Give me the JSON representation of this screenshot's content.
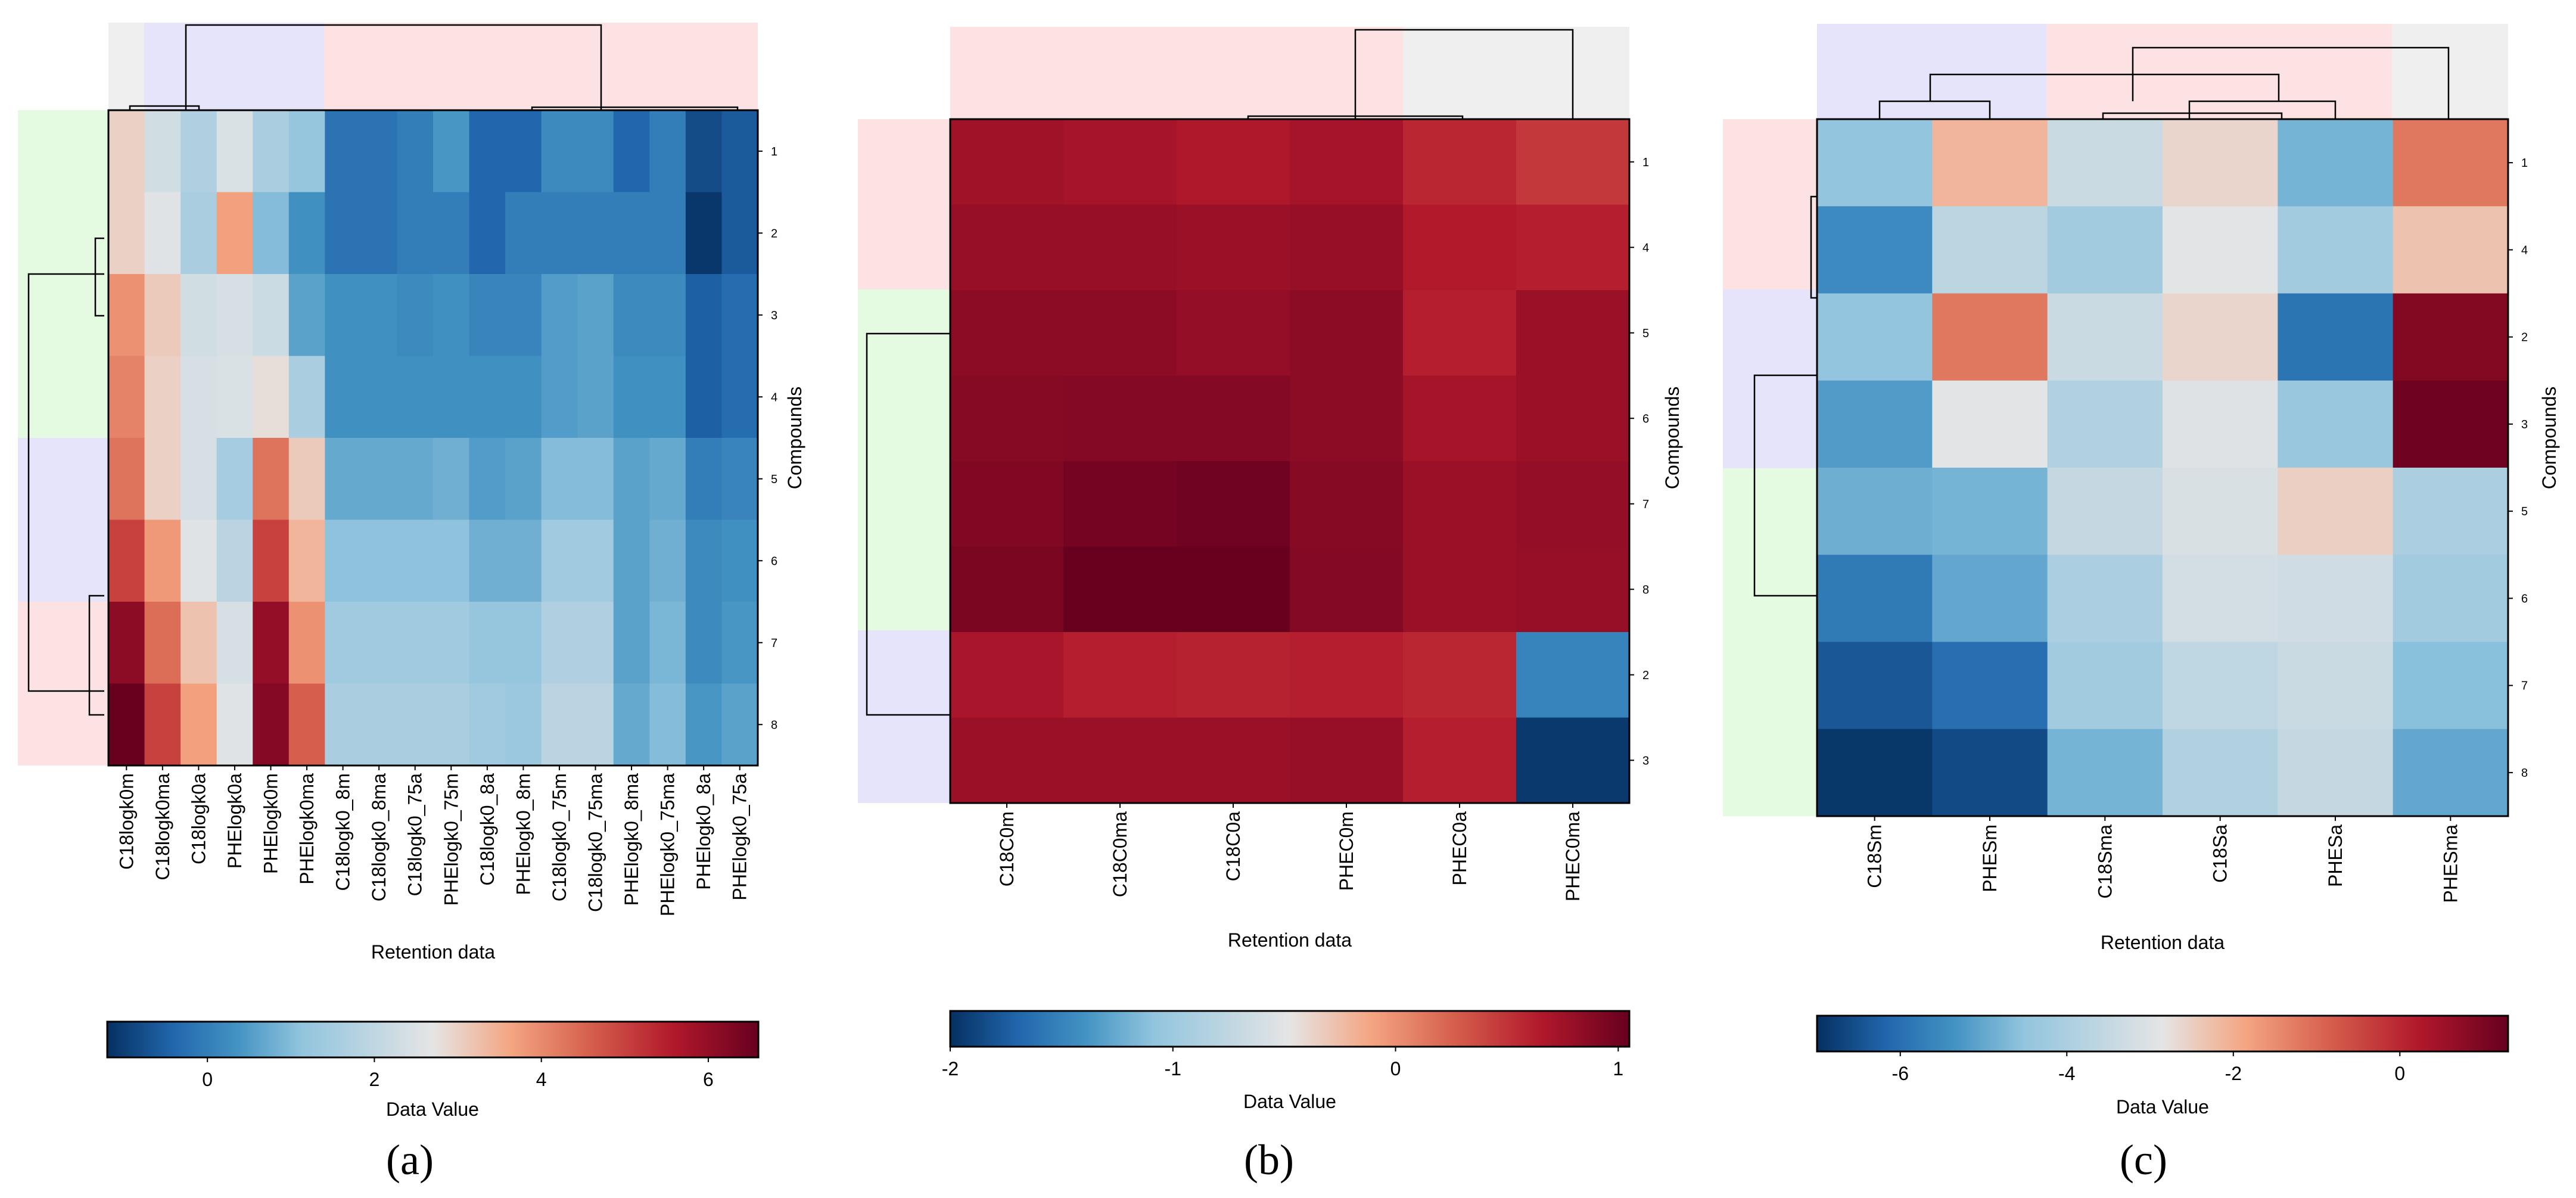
{
  "colors": {
    "dark_blue": "#053061",
    "mid_blue": "#4393c3",
    "light_gray": "#e5e5e5",
    "salmon": "#d6604d",
    "dark_red": "#67001f",
    "band_pink": "#fde2e4",
    "band_green": "#e5fbe1",
    "band_lavender": "#e6e4fa",
    "band_gray": "#efefef"
  },
  "chart_data": [
    {
      "type": "heatmap",
      "panel_label": "(a)",
      "xlabel": "Retention data",
      "ylabel": "Compounds",
      "colorbar_label": "Data Value",
      "colorbar_ticks": [
        0,
        2,
        4,
        6
      ],
      "vmin": -1.2,
      "vmax": 6.6,
      "columns": [
        "C18logk0m",
        "C18logk0ma",
        "C18logk0a",
        "PHElogk0a",
        "PHElogk0m",
        "PHElogk0ma",
        "C18logk0_8m",
        "C18logk0_8ma",
        "C18logk0_75a",
        "PHElogk0_75m",
        "C18logk0_8a",
        "PHElogk0_8m",
        "C18logk0_75m",
        "C18logk0_75ma",
        "PHElogk0_8ma",
        "PHElogk0_75ma",
        "PHElogk0_8a",
        "PHElogk0_75a"
      ],
      "rows": [
        "1",
        "2",
        "3",
        "4",
        "5",
        "6",
        "7",
        "8"
      ],
      "values": [
        [
          3.0,
          2.3,
          1.7,
          2.5,
          1.6,
          1.2,
          -0.2,
          -0.2,
          0.0,
          0.4,
          -0.4,
          -0.4,
          0.2,
          0.2,
          -0.4,
          0.0,
          -0.8,
          -0.6
        ],
        [
          3.0,
          2.6,
          1.6,
          3.7,
          1.0,
          0.3,
          -0.2,
          -0.2,
          0.0,
          0.0,
          -0.4,
          0.0,
          0.0,
          0.0,
          0.0,
          0.0,
          -1.1,
          -0.6
        ],
        [
          3.9,
          3.1,
          2.3,
          2.4,
          2.2,
          0.6,
          0.3,
          0.3,
          0.2,
          0.3,
          0.1,
          0.1,
          0.5,
          0.6,
          0.2,
          0.2,
          -0.5,
          -0.3
        ],
        [
          4.1,
          3.0,
          2.4,
          2.5,
          2.8,
          1.6,
          0.3,
          0.3,
          0.3,
          0.3,
          0.3,
          0.3,
          0.5,
          0.6,
          0.3,
          0.3,
          -0.5,
          -0.3
        ],
        [
          4.3,
          3.0,
          2.4,
          1.5,
          4.3,
          3.1,
          0.7,
          0.7,
          0.7,
          0.8,
          0.5,
          0.6,
          1.0,
          1.0,
          0.6,
          0.7,
          0.0,
          0.1
        ],
        [
          5.0,
          3.8,
          2.6,
          1.9,
          5.0,
          3.4,
          1.1,
          1.1,
          1.1,
          1.1,
          0.8,
          0.8,
          1.4,
          1.4,
          0.6,
          0.8,
          0.2,
          0.3
        ],
        [
          6.1,
          4.4,
          3.2,
          2.4,
          6.0,
          3.9,
          1.4,
          1.4,
          1.4,
          1.4,
          1.2,
          1.2,
          1.7,
          1.7,
          0.6,
          0.9,
          0.2,
          0.4
        ],
        [
          6.6,
          5.0,
          3.7,
          2.6,
          6.2,
          4.6,
          1.6,
          1.6,
          1.6,
          1.6,
          1.4,
          1.3,
          1.9,
          1.9,
          0.7,
          1.0,
          0.4,
          0.6
        ]
      ]
    },
    {
      "type": "heatmap",
      "panel_label": "(b)",
      "xlabel": "Retention data",
      "ylabel": "Compounds",
      "colorbar_label": "Data Value",
      "colorbar_ticks": [
        -2,
        -1,
        0,
        1
      ],
      "vmin": -2.0,
      "vmax": 1.05,
      "columns": [
        "C18C0m",
        "C18C0ma",
        "C18C0a",
        "PHEC0m",
        "PHEC0a",
        "PHEC0ma"
      ],
      "rows": [
        "1",
        "4",
        "5",
        "6",
        "7",
        "8",
        "2",
        "3"
      ],
      "values": [
        [
          0.75,
          0.72,
          0.67,
          0.72,
          0.57,
          0.47
        ],
        [
          0.8,
          0.8,
          0.78,
          0.8,
          0.65,
          0.62
        ],
        [
          0.85,
          0.85,
          0.82,
          0.85,
          0.62,
          0.78
        ],
        [
          0.88,
          0.9,
          0.9,
          0.85,
          0.72,
          0.78
        ],
        [
          0.92,
          0.98,
          1.0,
          0.88,
          0.78,
          0.82
        ],
        [
          0.95,
          1.05,
          1.05,
          0.9,
          0.78,
          0.8
        ],
        [
          0.7,
          0.62,
          0.6,
          0.62,
          0.57,
          -1.5
        ],
        [
          0.78,
          0.78,
          0.78,
          0.8,
          0.62,
          -1.95
        ]
      ]
    },
    {
      "type": "heatmap",
      "panel_label": "(c)",
      "xlabel": "Retention data",
      "ylabel": "Compounds",
      "colorbar_label": "Data Value",
      "colorbar_ticks": [
        -6,
        -4,
        -2,
        0
      ],
      "vmin": -7.0,
      "vmax": 1.3,
      "columns": [
        "C18Sm",
        "PHESm",
        "C18Sma",
        "C18Sa",
        "PHESa",
        "PHESma"
      ],
      "rows": [
        "1",
        "4",
        "2",
        "3",
        "5",
        "6",
        "7",
        "8"
      ],
      "values": [
        [
          -4.5,
          -2.1,
          -3.4,
          -2.6,
          -4.8,
          -1.2
        ],
        [
          -5.5,
          -3.7,
          -4.2,
          -2.9,
          -4.2,
          -2.3
        ],
        [
          -4.5,
          -1.2,
          -3.4,
          -2.6,
          -5.9,
          0.9
        ],
        [
          -5.2,
          -2.9,
          -3.9,
          -3.0,
          -4.4,
          1.2
        ],
        [
          -4.9,
          -4.8,
          -3.5,
          -3.1,
          -2.5,
          -4.0
        ],
        [
          -5.8,
          -5.0,
          -4.0,
          -3.2,
          -3.3,
          -4.2
        ],
        [
          -6.4,
          -6.0,
          -4.2,
          -3.6,
          -3.4,
          -4.6
        ],
        [
          -6.9,
          -6.6,
          -4.8,
          -3.9,
          -3.5,
          -5.0
        ]
      ]
    }
  ]
}
